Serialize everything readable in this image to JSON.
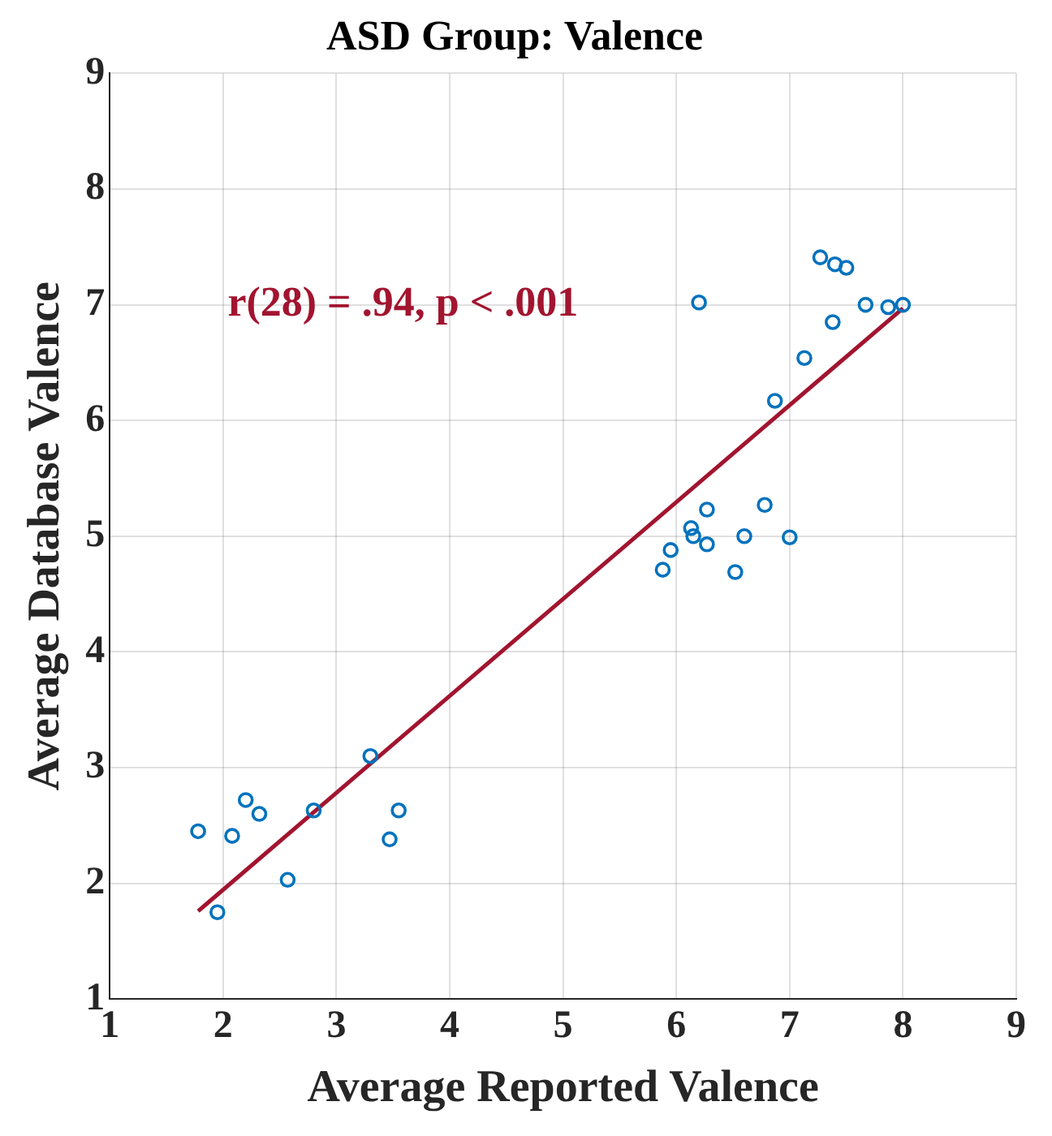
{
  "chart_data": {
    "type": "scatter",
    "title": "ASD Group: Valence",
    "xlabel": "Average Reported Valence",
    "ylabel": "Average Database Valence",
    "xlim": [
      1,
      9
    ],
    "xticks": [
      1,
      2,
      3,
      4,
      5,
      6,
      7,
      8,
      9
    ],
    "ylim": [
      1,
      9
    ],
    "yticks": [
      1,
      2,
      3,
      4,
      5,
      6,
      7,
      8,
      9
    ],
    "grid": true,
    "annotations": [
      "r(28) = .94, p < .001"
    ],
    "series": [
      {
        "marker": "circle",
        "color": "#0072bd",
        "x": [
          1.78,
          2.08,
          2.2,
          2.32,
          1.95,
          2.57,
          2.8,
          3.3,
          3.47,
          3.55,
          5.88,
          5.95,
          6.13,
          6.15,
          6.27,
          6.27,
          6.2,
          6.52,
          6.6,
          6.78,
          7.0,
          6.87,
          7.13,
          7.27,
          7.4,
          7.5,
          7.38,
          7.67,
          7.87,
          8.0
        ],
        "values": [
          2.45,
          2.41,
          2.72,
          2.6,
          1.75,
          2.03,
          2.63,
          3.1,
          2.38,
          2.63,
          4.71,
          4.88,
          5.07,
          5.0,
          5.23,
          4.93,
          7.02,
          4.69,
          5.0,
          5.27,
          4.99,
          6.17,
          6.54,
          7.41,
          7.35,
          7.32,
          6.85,
          7.0,
          6.98,
          7.0
        ]
      },
      {
        "type": "line",
        "color": "#a2142f",
        "x": [
          1.78,
          8.0
        ],
        "values": [
          1.76,
          6.97
        ]
      }
    ]
  }
}
